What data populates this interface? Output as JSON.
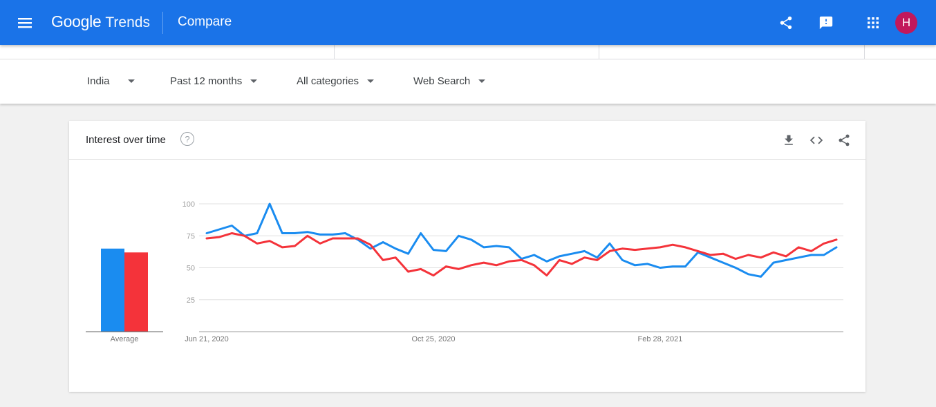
{
  "header": {
    "brand_google": "Google",
    "brand_trends": "Trends",
    "page_title": "Compare",
    "avatar_letter": "H",
    "accent": "#1a73e8",
    "avatar_bg": "#c2185b",
    "icons": [
      "menu-icon",
      "share-icon",
      "feedback-icon",
      "apps-icon"
    ]
  },
  "filters": {
    "region": "India",
    "time": "Past 12 months",
    "category": "All categories",
    "search_type": "Web Search"
  },
  "card": {
    "title": "Interest over time",
    "help": "?",
    "icons": [
      "download-icon",
      "embed-icon",
      "share-icon"
    ]
  },
  "chart_data": {
    "type": "line",
    "x_tick_labels": [
      "Jun 21, 2020",
      "Oct 25, 2020",
      "Feb 28, 2021"
    ],
    "x_tick_positions": [
      0,
      18,
      36
    ],
    "y_ticks": [
      25,
      50,
      75,
      100
    ],
    "ylim": [
      0,
      100
    ],
    "grid": true,
    "average_label": "Average",
    "series": [
      {
        "color": "#1a8cf0",
        "average": 65,
        "values": [
          77,
          80,
          83,
          75,
          77,
          100,
          77,
          77,
          78,
          76,
          76,
          77,
          72,
          65,
          70,
          65,
          61,
          77,
          64,
          63,
          75,
          72,
          66,
          67,
          66,
          57,
          60,
          55,
          59,
          61,
          63,
          58,
          69,
          56,
          52,
          53,
          50,
          51,
          51,
          62,
          58,
          54,
          50,
          45,
          43,
          54,
          56,
          58,
          60,
          60,
          66
        ]
      },
      {
        "color": "#f4333a",
        "average": 62,
        "values": [
          73,
          74,
          77,
          75,
          69,
          71,
          66,
          67,
          75,
          69,
          73,
          73,
          73,
          68,
          56,
          58,
          47,
          49,
          44,
          51,
          49,
          52,
          54,
          52,
          55,
          56,
          52,
          44,
          56,
          53,
          58,
          56,
          63,
          65,
          64,
          65,
          66,
          68,
          66,
          63,
          60,
          61,
          57,
          60,
          58,
          62,
          59,
          66,
          63,
          69,
          72
        ]
      }
    ]
  }
}
